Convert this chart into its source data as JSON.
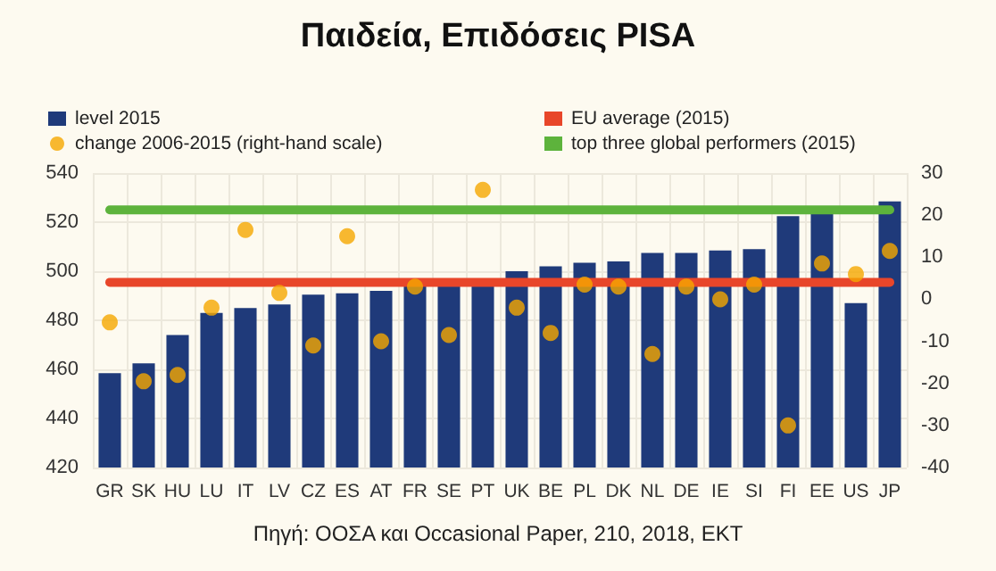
{
  "chart_data": {
    "type": "bar",
    "title": "Παιδεία, Επιδόσεις PISA",
    "annotations": [
      "Πηγή: ΟΟΣΑ και Occasional Paper, 210, 2018, ΕΚΤ"
    ],
    "categories": [
      "GR",
      "SK",
      "HU",
      "LU",
      "IT",
      "LV",
      "CZ",
      "ES",
      "AT",
      "FR",
      "SE",
      "PT",
      "UK",
      "BE",
      "PL",
      "DK",
      "NL",
      "DE",
      "IE",
      "SI",
      "FI",
      "EE",
      "US",
      "JP"
    ],
    "series": [
      {
        "name": "level 2015",
        "color": "#1f3a7a",
        "values": [
          458.5,
          462.5,
          474,
          483,
          485,
          486.5,
          490.5,
          491,
          492,
          494,
          495,
          496,
          500,
          502,
          503.5,
          504,
          507.5,
          507.5,
          508.5,
          509,
          522.5,
          524,
          487,
          528.5
        ]
      },
      {
        "name": "change 2006-2015 (right-hand scale)",
        "type": "scatter",
        "axis": "y2",
        "marker": "circle",
        "color": "#f5a800",
        "values": [
          -5.5,
          -19.5,
          -18,
          -2,
          16.5,
          1.5,
          -11,
          15,
          -10,
          3,
          -8.5,
          26,
          -2,
          -8,
          3.5,
          3,
          -13,
          3,
          0,
          3.5,
          -30,
          8.5,
          6,
          11.5
        ]
      },
      {
        "name": "EU average (2015)",
        "type": "line",
        "marker": "none",
        "color": "#e8462a",
        "values": [
          495.5,
          495.5,
          495.5,
          495.5,
          495.5,
          495.5,
          495.5,
          495.5,
          495.5,
          495.5,
          495.5,
          495.5,
          495.5,
          495.5,
          495.5,
          495.5,
          495.5,
          495.5,
          495.5,
          495.5,
          495.5,
          495.5,
          495.5,
          495.5
        ]
      },
      {
        "name": "top three global performers (2015)",
        "type": "line",
        "marker": "none",
        "color": "#5db33c",
        "values": [
          525,
          525,
          525,
          525,
          525,
          525,
          525,
          525,
          525,
          525,
          525,
          525,
          525,
          525,
          525,
          525,
          525,
          525,
          525,
          525,
          525,
          525,
          525,
          525
        ]
      }
    ],
    "ylim": [
      420,
      540
    ],
    "yticks": [
      420,
      440,
      460,
      480,
      500,
      520,
      540
    ],
    "y2lim": [
      -40,
      30
    ],
    "y2ticks": [
      -40,
      -30,
      -20,
      -10,
      0,
      10,
      20,
      30
    ],
    "grid": true,
    "legend": "top"
  }
}
